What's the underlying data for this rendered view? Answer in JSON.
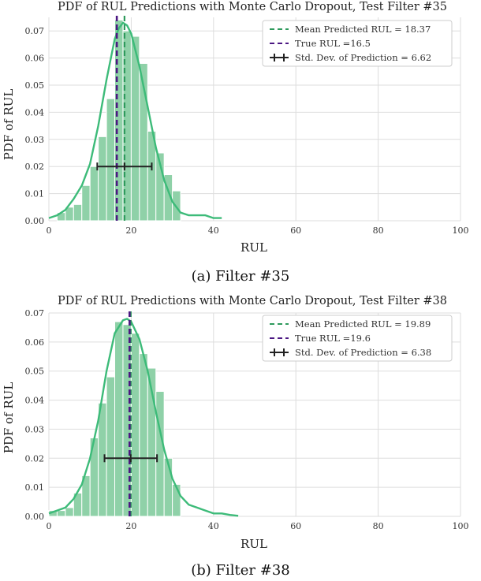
{
  "chart_data": [
    {
      "type": "bar",
      "title": "PDF of RUL Predictions with Monte Carlo Dropout, Test Filter #35",
      "xlabel": "RUL",
      "ylabel": "PDF of RUL",
      "xlim": [
        0,
        100
      ],
      "ylim": [
        0,
        0.075
      ],
      "xticks": [
        "0",
        "20",
        "40",
        "60",
        "80",
        "100"
      ],
      "yticks": [
        "0.00",
        "0.01",
        "0.02",
        "0.03",
        "0.04",
        "0.05",
        "0.06",
        "0.07"
      ],
      "grid": true,
      "bin_width": 2,
      "bins": [
        2,
        4,
        6,
        8,
        10,
        12,
        14,
        16,
        18,
        20,
        22,
        24,
        26,
        28,
        30
      ],
      "values": [
        0.003,
        0.005,
        0.006,
        0.013,
        0.02,
        0.031,
        0.045,
        0.074,
        0.07,
        0.068,
        0.058,
        0.033,
        0.025,
        0.017,
        0.011
      ],
      "kde_x": [
        0,
        2,
        4,
        6,
        8,
        10,
        12,
        14,
        16,
        17,
        18,
        19,
        20,
        22,
        24,
        26,
        28,
        30,
        32,
        34,
        36,
        38,
        40,
        42
      ],
      "kde_y": [
        0.001,
        0.002,
        0.004,
        0.008,
        0.013,
        0.021,
        0.035,
        0.052,
        0.067,
        0.071,
        0.073,
        0.072,
        0.069,
        0.057,
        0.042,
        0.027,
        0.015,
        0.007,
        0.003,
        0.002,
        0.002,
        0.002,
        0.001,
        0.001
      ],
      "mean_value": 18.37,
      "true_value": 16.5,
      "std": 6.62,
      "errorbar_y": 0.02,
      "legend_position": "top-right",
      "legend": [
        "Mean Predicted RUL = 18.37",
        "True RUL =16.5",
        "Std. Dev. of Prediction = 6.62"
      ],
      "caption": "(a) Filter #35"
    },
    {
      "type": "bar",
      "title": "PDF of RUL Predictions with Monte Carlo Dropout, Test Filter #38",
      "xlabel": "RUL",
      "ylabel": "PDF of RUL",
      "xlim": [
        0,
        100
      ],
      "ylim": [
        0,
        0.07
      ],
      "xticks": [
        "0",
        "20",
        "40",
        "60",
        "80",
        "100"
      ],
      "yticks": [
        "0.00",
        "0.01",
        "0.02",
        "0.03",
        "0.04",
        "0.05",
        "0.06",
        "0.07"
      ],
      "grid": true,
      "bin_width": 2,
      "bins": [
        0,
        2,
        4,
        6,
        8,
        10,
        12,
        14,
        16,
        18,
        20,
        22,
        24,
        26,
        28,
        30
      ],
      "values": [
        0.002,
        0.002,
        0.003,
        0.008,
        0.014,
        0.027,
        0.039,
        0.048,
        0.067,
        0.066,
        0.063,
        0.056,
        0.051,
        0.043,
        0.02,
        0.011
      ],
      "kde_x": [
        0,
        2,
        4,
        6,
        8,
        10,
        12,
        14,
        16,
        18,
        19,
        20,
        22,
        24,
        26,
        28,
        30,
        32,
        34,
        36,
        38,
        40,
        42,
        44,
        46
      ],
      "kde_y": [
        0.001,
        0.002,
        0.003,
        0.006,
        0.011,
        0.02,
        0.033,
        0.05,
        0.063,
        0.0675,
        0.068,
        0.067,
        0.061,
        0.05,
        0.036,
        0.023,
        0.013,
        0.007,
        0.004,
        0.003,
        0.002,
        0.001,
        0.001,
        0.0005,
        0.0002
      ],
      "mean_value": 19.89,
      "true_value": 19.6,
      "std": 6.38,
      "errorbar_y": 0.02,
      "legend_position": "top-right",
      "legend": [
        "Mean Predicted RUL = 19.89",
        "True RUL =19.6",
        "Std. Dev. of Prediction = 6.38"
      ],
      "caption": "(b) Filter #38"
    }
  ],
  "colors": {
    "bar_fill": "#8fd1a8",
    "bar_edge": "#ffffff",
    "kde": "#3dbb79",
    "mean_line": "#2e9a5c",
    "true_line": "#4b1782",
    "errorbar": "#222222",
    "grid": "#dddddd"
  }
}
